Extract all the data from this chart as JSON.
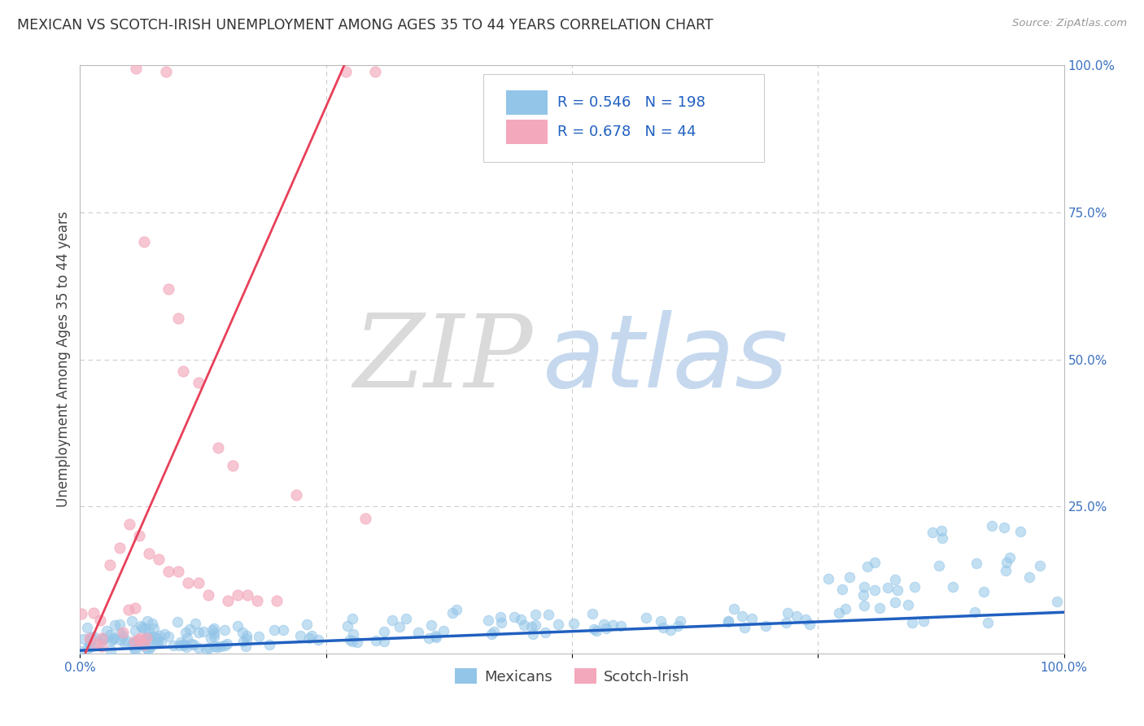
{
  "title": "MEXICAN VS SCOTCH-IRISH UNEMPLOYMENT AMONG AGES 35 TO 44 YEARS CORRELATION CHART",
  "source": "Source: ZipAtlas.com",
  "ylabel": "Unemployment Among Ages 35 to 44 years",
  "watermark_zip": "ZIP",
  "watermark_atlas": "atlas",
  "xlim": [
    0,
    1.0
  ],
  "ylim": [
    0,
    1.0
  ],
  "blue_R": 0.546,
  "blue_N": 198,
  "pink_R": 0.678,
  "pink_N": 44,
  "blue_color": "#92C5E8",
  "pink_color": "#F4A8BC",
  "blue_line_color": "#2060C0",
  "pink_line_color": "#E8405A",
  "grid_color": "#CCCCCC",
  "background_color": "#FFFFFF",
  "title_fontsize": 12.5,
  "axis_label_fontsize": 12,
  "tick_fontsize": 11,
  "legend_fontsize": 13,
  "watermark_zip_color": "#DADADA",
  "watermark_atlas_color": "#C5D8EE",
  "watermark_fontsize": 90,
  "blue_slope": 0.065,
  "blue_intercept": 0.005,
  "pink_slope": 3.8,
  "pink_intercept": -0.02
}
